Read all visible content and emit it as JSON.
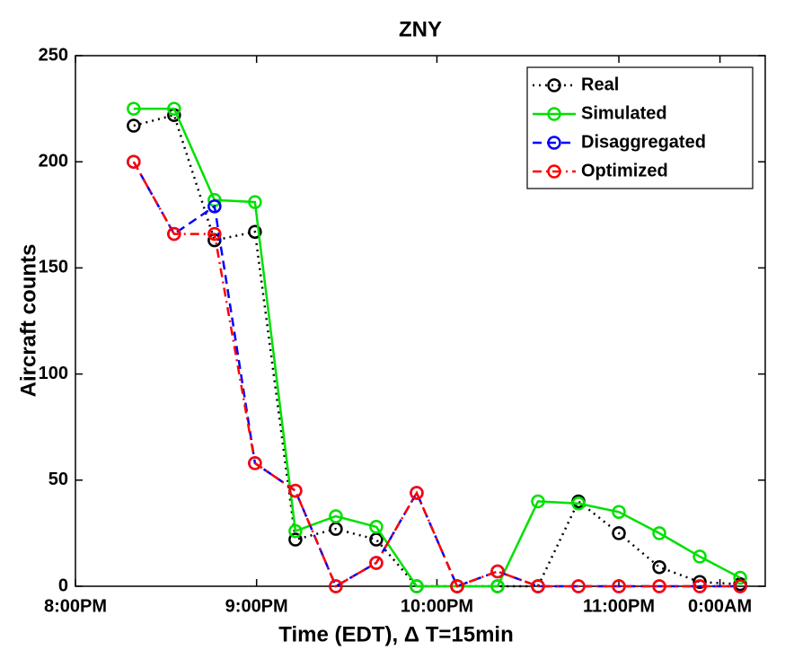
{
  "chart_data": {
    "type": "line",
    "title": "ZNY",
    "x_label": "Time (EDT), Δ T=15min",
    "y_label": "Aircraft counts",
    "x": [
      1,
      2,
      3,
      4,
      5,
      6,
      7,
      8,
      9,
      10,
      11,
      12,
      13,
      14,
      15,
      16
    ],
    "xlim": [
      -0.44,
      16.62
    ],
    "xticks": [
      {
        "value": -0.44,
        "label": "8:00PM"
      },
      {
        "value": 4.04,
        "label": "9:00PM"
      },
      {
        "value": 8.5,
        "label": "10:00PM"
      },
      {
        "value": 13.0,
        "label": "11:00PM"
      },
      {
        "value": 15.5,
        "label": "0:00AM"
      }
    ],
    "ylim": [
      0,
      250
    ],
    "yticks": [
      0,
      50,
      100,
      150,
      200,
      250
    ],
    "legend_position": "upper right",
    "series": [
      {
        "name": "Real",
        "color": "#000000",
        "dash": "dotted",
        "values": [
          217,
          222,
          163,
          167,
          22,
          27,
          22,
          0,
          0,
          0,
          0,
          40,
          25,
          9,
          2,
          1
        ]
      },
      {
        "name": "Simulated",
        "color": "#00e000",
        "dash": "solid",
        "values": [
          225,
          225,
          182,
          181,
          26,
          33,
          28,
          0,
          0,
          0,
          40,
          39,
          35,
          25,
          14,
          4
        ]
      },
      {
        "name": "Disaggregated",
        "color": "#0000ff",
        "dash": "dashed",
        "values": [
          200,
          166,
          179,
          58,
          45,
          0,
          11,
          44,
          0,
          7,
          0,
          0,
          0,
          0,
          0,
          0
        ]
      },
      {
        "name": "Optimized",
        "color": "#ff0000",
        "dash": "dashdot",
        "values": [
          200,
          166,
          166,
          58,
          45,
          0,
          11,
          44,
          0,
          7,
          0,
          0,
          0,
          0,
          0,
          0
        ]
      }
    ]
  }
}
